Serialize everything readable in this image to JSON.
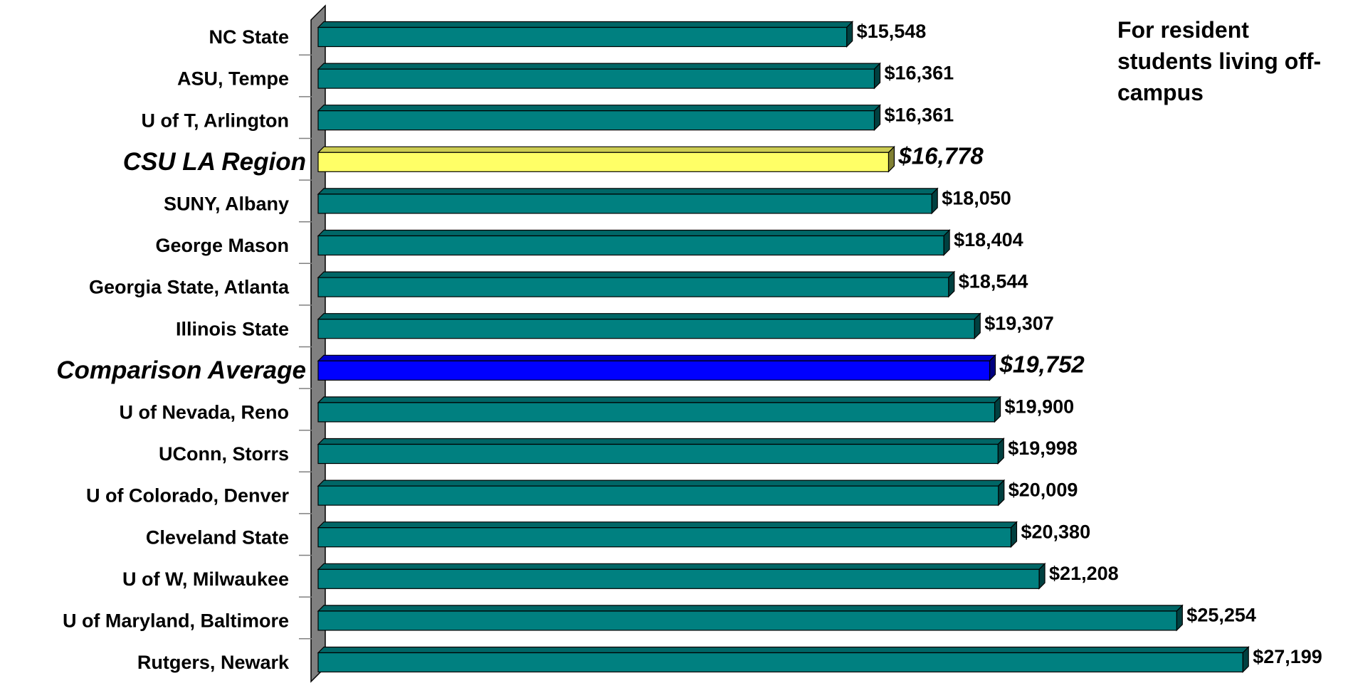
{
  "chart_data": {
    "type": "hbar",
    "annotation": "For resident students living off-campus",
    "categories": [
      "NC State",
      "ASU, Tempe",
      "U of T, Arlington",
      "CSU LA Region",
      "SUNY, Albany",
      "George Mason",
      "Georgia State, Atlanta",
      "Illinois State",
      "Comparison Average",
      "U of Nevada, Reno",
      "UConn, Storrs",
      "U of Colorado, Denver",
      "Cleveland State",
      "U of W, Milwaukee",
      "U of Maryland, Baltimore",
      "Rutgers, Newark"
    ],
    "values": [
      15548,
      16361,
      16361,
      16778,
      18050,
      18404,
      18544,
      19307,
      19752,
      19900,
      19998,
      20009,
      20380,
      21208,
      25254,
      27199
    ],
    "value_labels": [
      "$15,548",
      "$16,361",
      "$16,361",
      "$16,778",
      "$18,050",
      "$18,404",
      "$18,544",
      "$19,307",
      "$19,752",
      "$19,900",
      "$19,998",
      "$20,009",
      "$20,380",
      "$21,208",
      "$25,254",
      "$27,199"
    ],
    "color": "#008080",
    "colors": [
      "#008080",
      "#008080",
      "#008080",
      "#ffff66",
      "#008080",
      "#008080",
      "#008080",
      "#008080",
      "#0000ff",
      "#008080",
      "#008080",
      "#008080",
      "#008080",
      "#008080",
      "#008080",
      "#008080"
    ],
    "xlim": [
      0,
      30000
    ]
  }
}
